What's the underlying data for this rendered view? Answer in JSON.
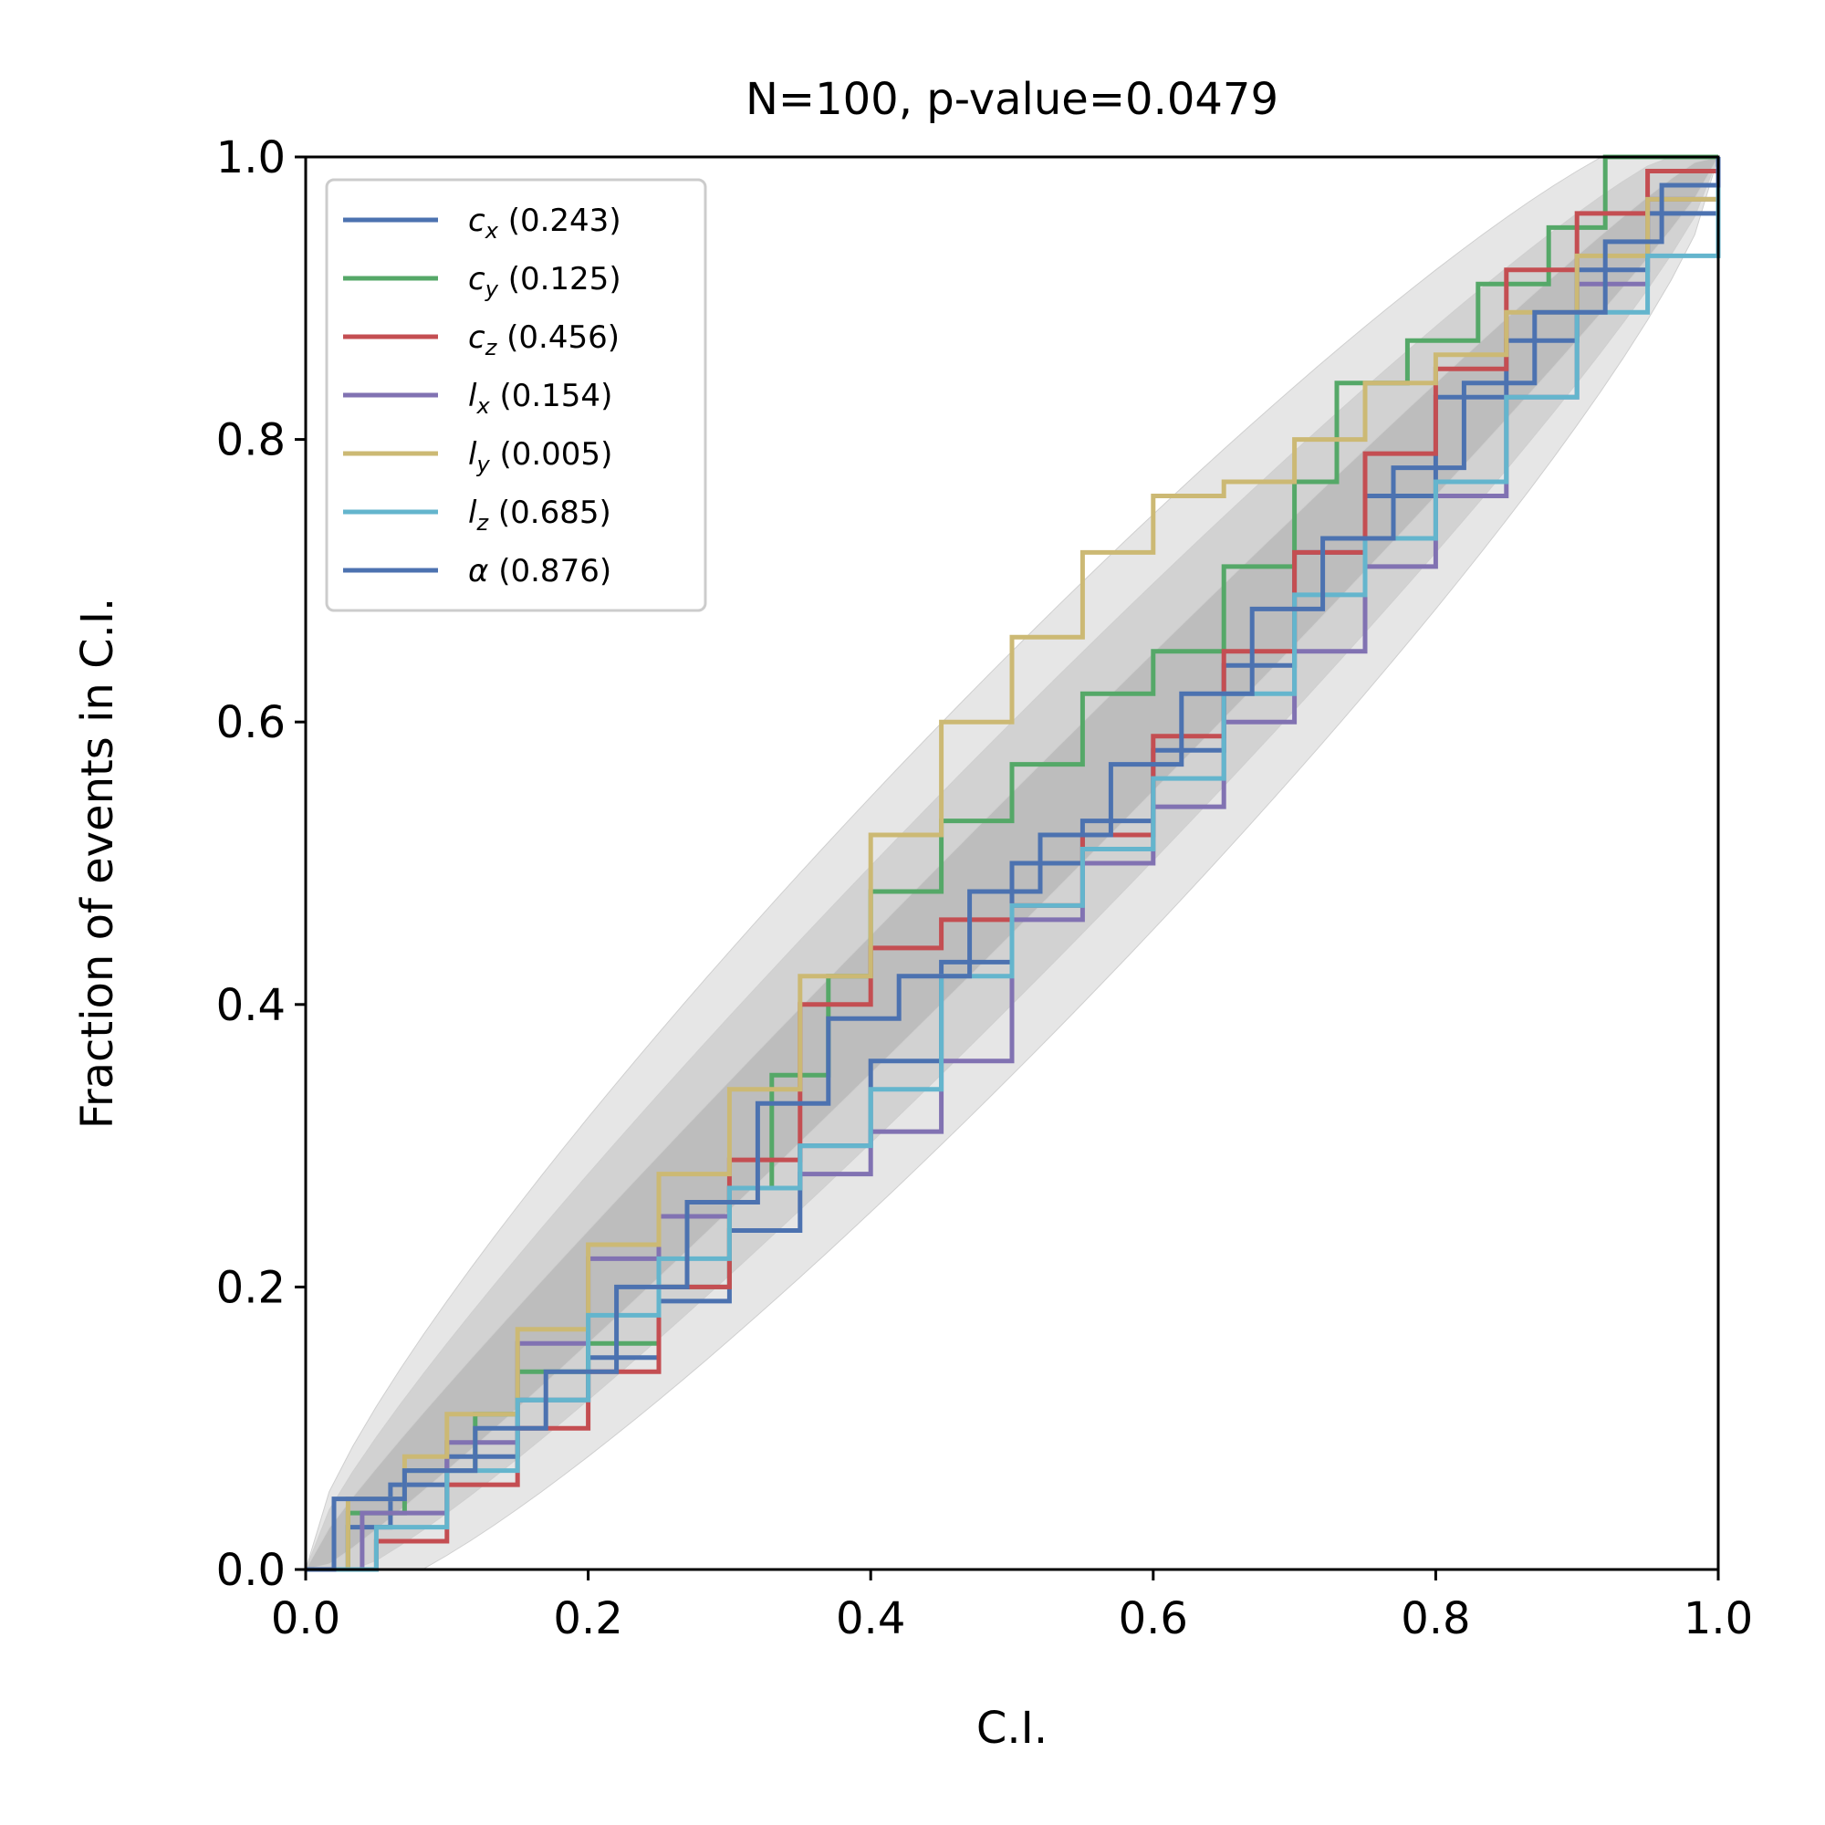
{
  "chart_data": {
    "type": "line",
    "title": "N=100, p-value=0.0479",
    "xlabel": "C.I.",
    "ylabel": "Fraction of events in C.I.",
    "xlim": [
      0,
      1
    ],
    "ylim": [
      0,
      1
    ],
    "xticks": [
      "0.0",
      "0.2",
      "0.4",
      "0.6",
      "0.8",
      "1.0"
    ],
    "yticks": [
      "0.0",
      "0.2",
      "0.4",
      "0.6",
      "0.8",
      "1.0"
    ],
    "grid": false,
    "legend_position": "top-left",
    "bands": [
      {
        "label": "1-sigma",
        "color": "#bdbdbd",
        "halfwidth": 0.05
      },
      {
        "label": "2-sigma",
        "color": "#d2d2d2",
        "halfwidth": 0.1
      },
      {
        "label": "3-sigma",
        "color": "#e6e6e6",
        "halfwidth": 0.15
      }
    ],
    "series": [
      {
        "name": "c_x (0.243)",
        "sym": "c",
        "sub": "x",
        "pval": "(0.243)",
        "color": "#4c72b0",
        "points": [
          [
            0,
            0
          ],
          [
            0.03,
            0.03
          ],
          [
            0.06,
            0.06
          ],
          [
            0.1,
            0.08
          ],
          [
            0.15,
            0.12
          ],
          [
            0.2,
            0.15
          ],
          [
            0.25,
            0.19
          ],
          [
            0.3,
            0.24
          ],
          [
            0.35,
            0.3
          ],
          [
            0.4,
            0.36
          ],
          [
            0.45,
            0.43
          ],
          [
            0.5,
            0.5
          ],
          [
            0.55,
            0.53
          ],
          [
            0.6,
            0.58
          ],
          [
            0.65,
            0.64
          ],
          [
            0.7,
            0.72
          ],
          [
            0.75,
            0.76
          ],
          [
            0.8,
            0.83
          ],
          [
            0.85,
            0.87
          ],
          [
            0.9,
            0.92
          ],
          [
            0.95,
            0.96
          ],
          [
            1,
            1
          ]
        ]
      },
      {
        "name": "c_y (0.125)",
        "sym": "c",
        "sub": "y",
        "pval": "(0.125)",
        "color": "#55a868",
        "points": [
          [
            0,
            0
          ],
          [
            0.03,
            0.04
          ],
          [
            0.07,
            0.07
          ],
          [
            0.12,
            0.11
          ],
          [
            0.15,
            0.14
          ],
          [
            0.2,
            0.16
          ],
          [
            0.25,
            0.2
          ],
          [
            0.3,
            0.27
          ],
          [
            0.33,
            0.35
          ],
          [
            0.37,
            0.42
          ],
          [
            0.4,
            0.48
          ],
          [
            0.45,
            0.53
          ],
          [
            0.5,
            0.57
          ],
          [
            0.55,
            0.62
          ],
          [
            0.6,
            0.65
          ],
          [
            0.65,
            0.71
          ],
          [
            0.7,
            0.77
          ],
          [
            0.73,
            0.84
          ],
          [
            0.78,
            0.87
          ],
          [
            0.83,
            0.91
          ],
          [
            0.88,
            0.95
          ],
          [
            0.92,
            1
          ],
          [
            1,
            1
          ]
        ]
      },
      {
        "name": "c_z (0.456)",
        "sym": "c",
        "sub": "z",
        "pval": "(0.456)",
        "color": "#c44e52",
        "points": [
          [
            0,
            0
          ],
          [
            0.05,
            0.02
          ],
          [
            0.1,
            0.06
          ],
          [
            0.15,
            0.1
          ],
          [
            0.2,
            0.14
          ],
          [
            0.25,
            0.2
          ],
          [
            0.3,
            0.29
          ],
          [
            0.35,
            0.4
          ],
          [
            0.4,
            0.44
          ],
          [
            0.45,
            0.46
          ],
          [
            0.5,
            0.47
          ],
          [
            0.55,
            0.52
          ],
          [
            0.6,
            0.59
          ],
          [
            0.65,
            0.65
          ],
          [
            0.7,
            0.72
          ],
          [
            0.75,
            0.79
          ],
          [
            0.8,
            0.85
          ],
          [
            0.85,
            0.92
          ],
          [
            0.9,
            0.96
          ],
          [
            0.95,
            0.99
          ],
          [
            1,
            1
          ]
        ]
      },
      {
        "name": "l_x (0.154)",
        "sym": "l",
        "sub": "x",
        "pval": "(0.154)",
        "color": "#8172b2",
        "points": [
          [
            0,
            0
          ],
          [
            0.04,
            0.04
          ],
          [
            0.1,
            0.09
          ],
          [
            0.15,
            0.16
          ],
          [
            0.2,
            0.22
          ],
          [
            0.25,
            0.25
          ],
          [
            0.3,
            0.27
          ],
          [
            0.35,
            0.28
          ],
          [
            0.4,
            0.31
          ],
          [
            0.45,
            0.36
          ],
          [
            0.5,
            0.46
          ],
          [
            0.55,
            0.5
          ],
          [
            0.6,
            0.54
          ],
          [
            0.65,
            0.6
          ],
          [
            0.7,
            0.65
          ],
          [
            0.75,
            0.71
          ],
          [
            0.8,
            0.76
          ],
          [
            0.85,
            0.83
          ],
          [
            0.9,
            0.91
          ],
          [
            0.95,
            0.97
          ],
          [
            1,
            1
          ]
        ]
      },
      {
        "name": "l_y (0.005)",
        "sym": "l",
        "sub": "y",
        "pval": "(0.005)",
        "color": "#ccb974",
        "points": [
          [
            0,
            0
          ],
          [
            0.03,
            0.05
          ],
          [
            0.07,
            0.08
          ],
          [
            0.1,
            0.11
          ],
          [
            0.15,
            0.17
          ],
          [
            0.2,
            0.23
          ],
          [
            0.25,
            0.28
          ],
          [
            0.3,
            0.34
          ],
          [
            0.35,
            0.42
          ],
          [
            0.4,
            0.52
          ],
          [
            0.45,
            0.6
          ],
          [
            0.5,
            0.66
          ],
          [
            0.55,
            0.72
          ],
          [
            0.6,
            0.76
          ],
          [
            0.65,
            0.77
          ],
          [
            0.7,
            0.8
          ],
          [
            0.75,
            0.84
          ],
          [
            0.8,
            0.86
          ],
          [
            0.85,
            0.89
          ],
          [
            0.9,
            0.93
          ],
          [
            0.95,
            0.97
          ],
          [
            1,
            1
          ]
        ]
      },
      {
        "name": "l_z (0.685)",
        "sym": "l",
        "sub": "z",
        "pval": "(0.685)",
        "color": "#64b5cd",
        "points": [
          [
            0,
            0
          ],
          [
            0.05,
            0.03
          ],
          [
            0.1,
            0.07
          ],
          [
            0.15,
            0.12
          ],
          [
            0.2,
            0.18
          ],
          [
            0.25,
            0.22
          ],
          [
            0.3,
            0.27
          ],
          [
            0.35,
            0.3
          ],
          [
            0.4,
            0.34
          ],
          [
            0.45,
            0.42
          ],
          [
            0.5,
            0.47
          ],
          [
            0.55,
            0.51
          ],
          [
            0.6,
            0.56
          ],
          [
            0.65,
            0.62
          ],
          [
            0.7,
            0.69
          ],
          [
            0.75,
            0.73
          ],
          [
            0.8,
            0.77
          ],
          [
            0.85,
            0.83
          ],
          [
            0.9,
            0.89
          ],
          [
            0.95,
            0.93
          ],
          [
            1,
            1
          ]
        ]
      },
      {
        "name": "α (0.876)",
        "sym": "α",
        "sub": "",
        "pval": "(0.876)",
        "color": "#4c72b0",
        "points": [
          [
            0,
            0
          ],
          [
            0.02,
            0.05
          ],
          [
            0.07,
            0.07
          ],
          [
            0.12,
            0.1
          ],
          [
            0.17,
            0.14
          ],
          [
            0.22,
            0.2
          ],
          [
            0.27,
            0.26
          ],
          [
            0.32,
            0.33
          ],
          [
            0.37,
            0.39
          ],
          [
            0.42,
            0.42
          ],
          [
            0.47,
            0.48
          ],
          [
            0.52,
            0.52
          ],
          [
            0.57,
            0.57
          ],
          [
            0.62,
            0.62
          ],
          [
            0.67,
            0.68
          ],
          [
            0.72,
            0.73
          ],
          [
            0.77,
            0.78
          ],
          [
            0.82,
            0.84
          ],
          [
            0.87,
            0.89
          ],
          [
            0.92,
            0.94
          ],
          [
            0.96,
            0.98
          ],
          [
            1,
            1
          ]
        ]
      }
    ]
  }
}
